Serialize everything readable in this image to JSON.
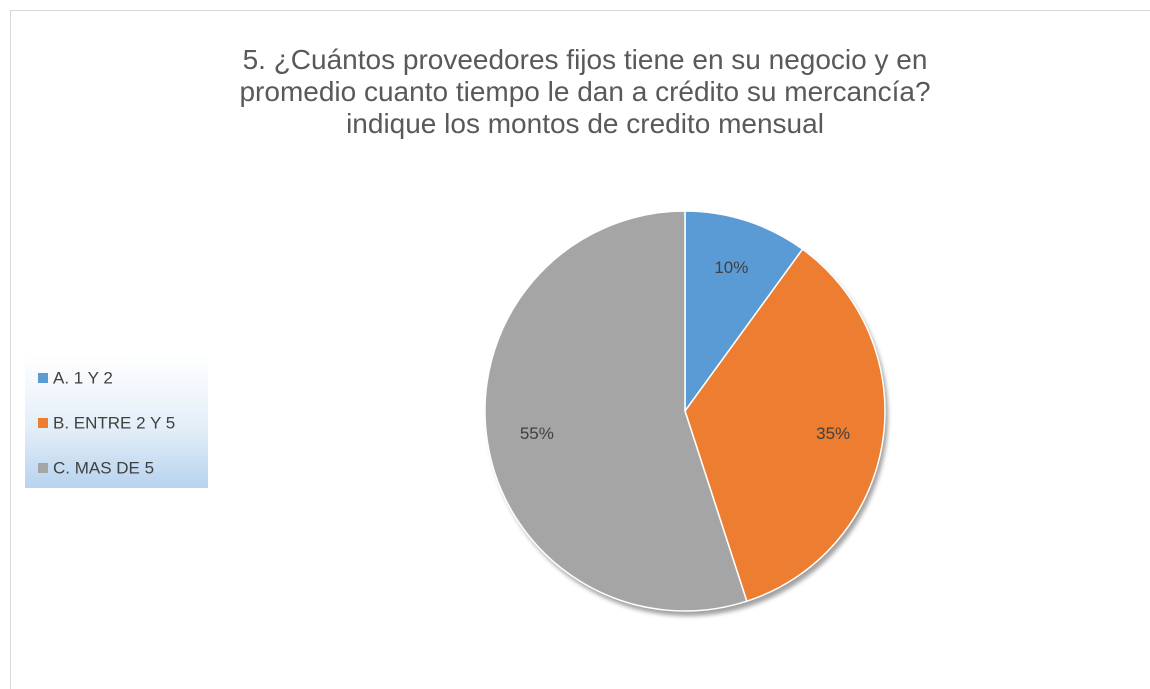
{
  "chart_data": {
    "type": "pie",
    "title": "5. ¿Cuántos proveedores fijos tiene en su negocio y en promedio cuanto tiempo le dan a crédito su mercancía? indique los montos de credito mensual",
    "categories": [
      "A. 1 Y 2",
      "B. ENTRE 2 Y 5",
      "C. MAS DE 5"
    ],
    "values": [
      10,
      35,
      55
    ],
    "value_labels": [
      "10%",
      "35%",
      "55%"
    ],
    "colors": [
      "#5b9bd5",
      "#ed7d31",
      "#a5a5a5"
    ],
    "legend": "left"
  }
}
